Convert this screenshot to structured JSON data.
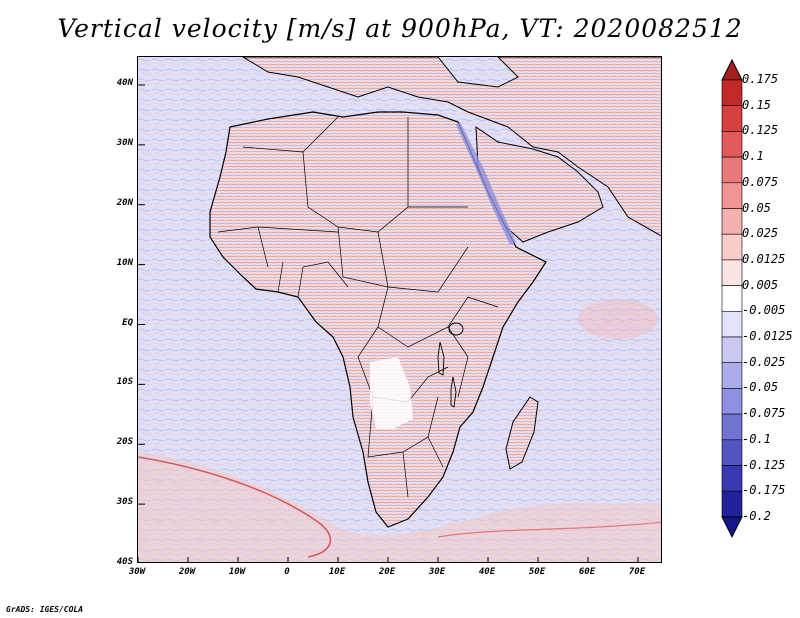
{
  "title": "Vertical velocity [m/s] at 900hPa, VT: 2020082512",
  "credit": "GrADS: IGES/COLA",
  "lat_labels": [
    "40N",
    "30N",
    "20N",
    "10N",
    "EQ",
    "10S",
    "20S",
    "30S",
    "40S"
  ],
  "lon_labels": [
    "30W",
    "20W",
    "10W",
    "0",
    "10E",
    "20E",
    "30E",
    "40E",
    "50E",
    "60E",
    "70E"
  ],
  "colorbar": {
    "levels": [
      "0.175",
      "0.15",
      "0.125",
      "0.1",
      "0.075",
      "0.05",
      "0.025",
      "0.0125",
      "0.005",
      "-0.005",
      "-0.0125",
      "-0.025",
      "-0.05",
      "-0.075",
      "-0.1",
      "-0.125",
      "-0.175",
      "-0.2"
    ],
    "colors": [
      "#a51d1d",
      "#c22a2a",
      "#d64040",
      "#e25a5a",
      "#ea7878",
      "#f09494",
      "#f5b0b0",
      "#f9cccc",
      "#fce4e4",
      "#ffffff",
      "#e2e2f8",
      "#c8c8f2",
      "#acacea",
      "#9090e0",
      "#7272d2",
      "#5555c2",
      "#3838b0",
      "#22229c",
      "#15158a"
    ]
  },
  "map_colors": {
    "ocean": "#dcdcf6",
    "land": "#f4dcdc",
    "border": "#000000"
  }
}
